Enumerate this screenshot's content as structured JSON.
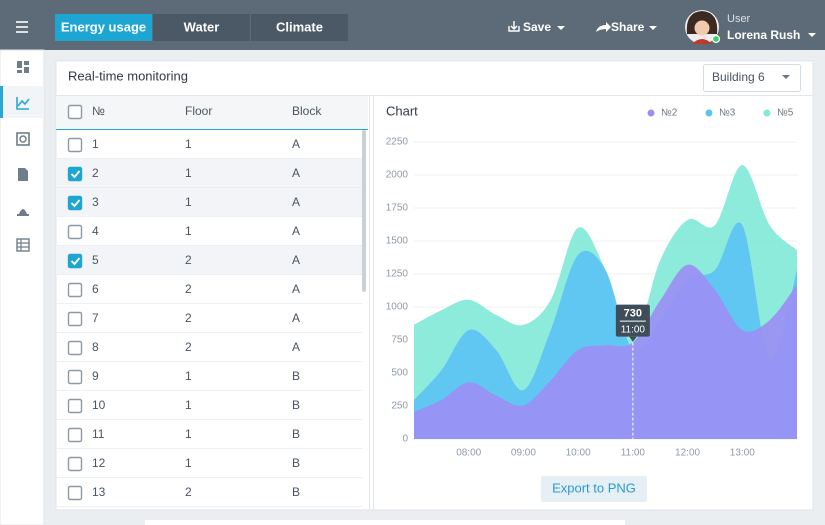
{
  "header": {
    "tabs": [
      "Energy usage",
      "Water",
      "Climate"
    ],
    "active_tab": 0,
    "actions": [
      "Save",
      "Share"
    ],
    "user_label": "User",
    "user_name": "Lorena Rush"
  },
  "panel": {
    "title": "Real-time monitoring",
    "select": "Building 6",
    "export": "Export to PNG"
  },
  "table": {
    "columns": [
      "№",
      "Floor",
      "Block"
    ],
    "rows": [
      {
        "no": 1,
        "floor": 1,
        "block": "A",
        "checked": false
      },
      {
        "no": 2,
        "floor": 1,
        "block": "A",
        "checked": true
      },
      {
        "no": 3,
        "floor": 1,
        "block": "A",
        "checked": true
      },
      {
        "no": 4,
        "floor": 1,
        "block": "A",
        "checked": false
      },
      {
        "no": 5,
        "floor": 2,
        "block": "A",
        "checked": true
      },
      {
        "no": 6,
        "floor": 2,
        "block": "A",
        "checked": false
      },
      {
        "no": 7,
        "floor": 2,
        "block": "A",
        "checked": false
      },
      {
        "no": 8,
        "floor": 2,
        "block": "A",
        "checked": false
      },
      {
        "no": 9,
        "floor": 1,
        "block": "B",
        "checked": false
      },
      {
        "no": 10,
        "floor": 1,
        "block": "B",
        "checked": false
      },
      {
        "no": 11,
        "floor": 1,
        "block": "B",
        "checked": false
      },
      {
        "no": 12,
        "floor": 1,
        "block": "B",
        "checked": false
      },
      {
        "no": 13,
        "floor": 2,
        "block": "B",
        "checked": false
      }
    ]
  },
  "chart_data": {
    "type": "area",
    "title": "Chart",
    "categories": [
      null,
      null,
      "08:00",
      null,
      "09:00",
      null,
      "10:00",
      null,
      "11:00",
      null,
      "12:00",
      null,
      "13:00",
      null,
      null
    ],
    "series": [
      {
        "name": "№2",
        "color": "#9b8ff5",
        "values": [
          205,
          295,
          430,
          330,
          255,
          445,
          675,
          710,
          730,
          1050,
          1320,
          1130,
          825,
          900,
          1170
        ]
      },
      {
        "name": "№3",
        "color": "#5cc3f4",
        "values": [
          295,
          520,
          825,
          675,
          370,
          825,
          1395,
          1280,
          675,
          900,
          1205,
          1280,
          1620,
          600,
          1280
        ]
      },
      {
        "name": "№5",
        "color": "#83e9d8",
        "values": [
          865,
          975,
          1055,
          940,
          865,
          1055,
          1600,
          1280,
          750,
          1355,
          1660,
          1620,
          2075,
          1620,
          1430
        ]
      }
    ],
    "ylim": [
      0,
      2250
    ],
    "yticks": [
      0,
      250,
      500,
      750,
      1000,
      1250,
      1500,
      1750,
      2000,
      2250
    ],
    "grid": true,
    "legend": "top-right",
    "tooltip": {
      "series": 0,
      "index": 8
    }
  }
}
